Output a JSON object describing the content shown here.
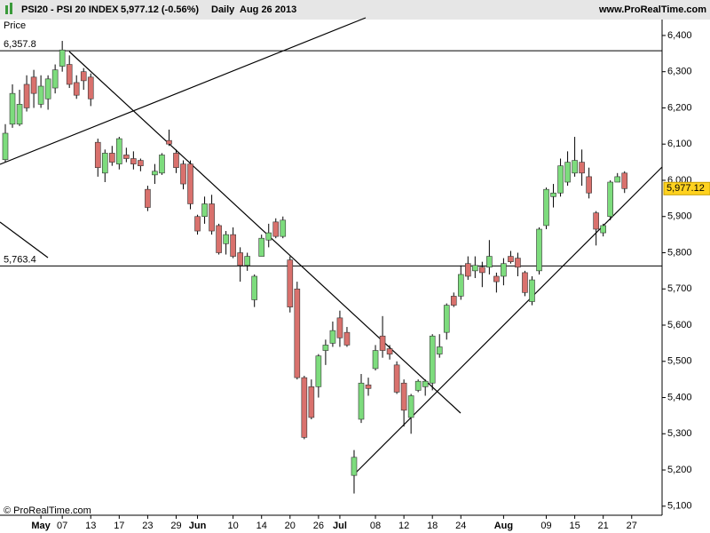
{
  "header": {
    "symbol": "PSI20 - PSI 20 INDEX",
    "quote": "5,977.12 (-0.56%)",
    "period": "Daily",
    "date": "Aug 26 2013",
    "site": "www.ProRealTime.com"
  },
  "chart_data": {
    "type": "candlestick",
    "axis_title": "Price",
    "credit": "© ProRealTime.com",
    "categories": [
      null,
      null,
      null,
      null,
      null,
      "May",
      null,
      null,
      "07",
      null,
      null,
      null,
      "13",
      null,
      null,
      null,
      "17",
      null,
      null,
      null,
      "23",
      null,
      null,
      null,
      "29",
      null,
      null,
      "Jun",
      null,
      null,
      null,
      null,
      "10",
      null,
      null,
      null,
      "14",
      null,
      null,
      null,
      "20",
      null,
      null,
      null,
      "26",
      null,
      null,
      "Jul",
      null,
      null,
      null,
      null,
      "08",
      null,
      null,
      null,
      "12",
      null,
      null,
      null,
      "18",
      null,
      null,
      null,
      "24",
      null,
      null,
      null,
      null,
      null,
      "Aug",
      null,
      null,
      null,
      null,
      null,
      "09",
      null,
      null,
      null,
      "15",
      null,
      null,
      null,
      "21",
      null,
      null,
      null,
      "27"
    ],
    "open": [
      6057,
      6155,
      6155,
      6265,
      6285,
      6210,
      6225,
      6255,
      6315,
      6320,
      6270,
      6300,
      6285,
      6105,
      6020,
      6075,
      6045,
      6070,
      6060,
      6055,
      5975,
      6015,
      6020,
      6110,
      6075,
      6045,
      6045,
      5900,
      5900,
      5935,
      5875,
      5825,
      5850,
      5800,
      5765,
      5670,
      5790,
      5835,
      5885,
      5845,
      5780,
      5700,
      5455,
      5430,
      5430,
      5530,
      5550,
      5620,
      5580,
      5185,
      5340,
      5435,
      5480,
      5570,
      5535,
      5490,
      5440,
      5345,
      5420,
      5430,
      5440,
      5520,
      5580,
      5680,
      5680,
      5770,
      5750,
      5760,
      5760,
      5735,
      5735,
      5790,
      5785,
      5745,
      5665,
      5750,
      5875,
      5955,
      5965,
      5995,
      6020,
      6050,
      6010,
      5910,
      5855,
      5900,
      5995,
      6020,
      null
    ],
    "high": [
      6155,
      6265,
      6250,
      6290,
      6305,
      6290,
      6290,
      6320,
      6385,
      6345,
      6290,
      6310,
      6295,
      6115,
      6085,
      6095,
      6120,
      6090,
      6080,
      6060,
      5985,
      6045,
      6075,
      6140,
      6085,
      6055,
      6055,
      5905,
      5955,
      5960,
      5880,
      5860,
      5870,
      5815,
      5800,
      5740,
      5850,
      5880,
      5895,
      5900,
      5790,
      5720,
      5460,
      5450,
      5520,
      5560,
      5610,
      5640,
      5595,
      5255,
      5465,
      5455,
      5545,
      5625,
      5545,
      5500,
      5450,
      5410,
      5450,
      5450,
      5575,
      5575,
      5660,
      5690,
      5765,
      5790,
      5790,
      5775,
      5835,
      5745,
      5785,
      5805,
      5800,
      5750,
      5735,
      5870,
      5980,
      5990,
      6060,
      6080,
      6120,
      6085,
      6035,
      5915,
      5880,
      6000,
      6020,
      6025,
      null
    ],
    "low": [
      6050,
      6145,
      6150,
      6190,
      6200,
      6200,
      6195,
      6240,
      6300,
      6255,
      6225,
      6250,
      6205,
      6010,
      5995,
      6040,
      6030,
      6050,
      6030,
      6025,
      5915,
      5990,
      6015,
      6095,
      6020,
      5975,
      5920,
      5850,
      5880,
      5850,
      5795,
      5795,
      5785,
      5720,
      5750,
      5650,
      5790,
      5815,
      5840,
      5840,
      5635,
      5450,
      5285,
      5340,
      5400,
      5490,
      5540,
      5540,
      5540,
      5135,
      5330,
      5405,
      5475,
      5510,
      5505,
      5410,
      5320,
      5300,
      5415,
      5405,
      5420,
      5510,
      5560,
      5650,
      5670,
      5725,
      5730,
      5705,
      5740,
      5690,
      5710,
      5770,
      5735,
      5680,
      5655,
      5740,
      5865,
      5925,
      5955,
      5985,
      6010,
      5985,
      5950,
      5820,
      5845,
      5890,
      5995,
      5965,
      null
    ],
    "close": [
      6130,
      6240,
      6210,
      6200,
      6240,
      6260,
      6280,
      6305,
      6360,
      6265,
      6235,
      6275,
      6225,
      6035,
      6075,
      6050,
      6115,
      6060,
      6045,
      6040,
      5925,
      6025,
      6070,
      6100,
      6035,
      5990,
      5935,
      5860,
      5935,
      5860,
      5800,
      5850,
      5790,
      5765,
      5790,
      5735,
      5840,
      5855,
      5845,
      5890,
      5650,
      5455,
      5290,
      5345,
      5515,
      5545,
      5585,
      5565,
      5545,
      5235,
      5440,
      5425,
      5530,
      5530,
      5520,
      5415,
      5365,
      5405,
      5445,
      5445,
      5570,
      5540,
      5655,
      5655,
      5740,
      5735,
      5765,
      5745,
      5790,
      5720,
      5770,
      5775,
      5760,
      5690,
      5725,
      5865,
      5975,
      5965,
      6040,
      6050,
      6055,
      6020,
      5965,
      5865,
      5875,
      5995,
      6010,
      5977.12,
      null
    ],
    "up_color": "#7ddc7d",
    "down_color": "#d9716d",
    "ylim": [
      5075,
      6444
    ],
    "yticks": [
      {
        "value": 5100,
        "label": "5,100"
      },
      {
        "value": 5200,
        "label": "5,200"
      },
      {
        "value": 5300,
        "label": "5,300"
      },
      {
        "value": 5400,
        "label": "5,400"
      },
      {
        "value": 5500,
        "label": "5,500"
      },
      {
        "value": 5600,
        "label": "5,600"
      },
      {
        "value": 5700,
        "label": "5,700"
      },
      {
        "value": 5800,
        "label": "5,800"
      },
      {
        "value": 5900,
        "label": "5,900"
      },
      {
        "value": 6000,
        "label": "6,000"
      },
      {
        "value": 6100,
        "label": "6,100"
      },
      {
        "value": 6200,
        "label": "6,200"
      },
      {
        "value": 6300,
        "label": "6,300"
      },
      {
        "value": 6400,
        "label": "6,400"
      }
    ],
    "hlines": [
      {
        "value": 6357.8,
        "label": "6,357.8"
      },
      {
        "value": 5763.4,
        "label": "5,763.4"
      }
    ],
    "last_price": {
      "value": 5977.12,
      "label": "5,977.12"
    }
  }
}
